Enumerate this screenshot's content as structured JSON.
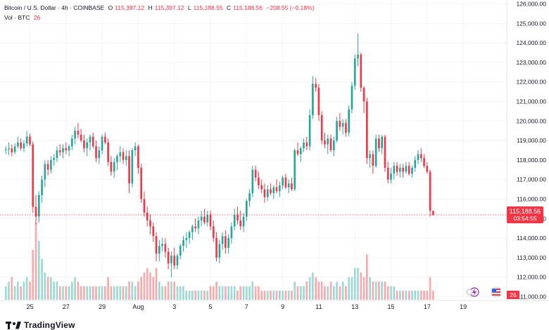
{
  "legend": {
    "symbol": "Bitcoin / U.S. Dollar · 4h · COINBASE",
    "o_label": "O",
    "o_value": "115,397.12",
    "h_label": "H",
    "h_value": "115,397.12",
    "l_label": "L",
    "l_value": "115,188.55",
    "c_label": "C",
    "c_value": "115,188.56",
    "change": "−208.55 (−0.18%)",
    "vol_label": "Vol · BTC",
    "vol_value": "26"
  },
  "brand": {
    "name": "TradingView"
  },
  "price_tag": {
    "price": "115,188.56",
    "countdown": "03:54:55"
  },
  "vol_tag": {
    "value": "26"
  },
  "colors": {
    "up": "#26a69a",
    "down": "#f23645",
    "up_vol": "#9ed8d3",
    "down_vol": "#f7a9ab",
    "grid": "#f0f3fa",
    "text": "#131722"
  },
  "chart_data": {
    "type": "candlestick",
    "symbol": "Bitcoin / U.S. Dollar",
    "interval": "4h",
    "exchange": "COINBASE",
    "ylim": [
      110800,
      126200
    ],
    "y_ticks": [
      111000,
      112000,
      113000,
      114000,
      115000,
      116000,
      117000,
      118000,
      119000,
      120000,
      121000,
      122000,
      123000,
      124000,
      125000,
      126000
    ],
    "y_tick_labels": [
      "111,000.00",
      "112,000.00",
      "113,000.00",
      "114,000.00",
      "115,000.00",
      "116,000.00",
      "117,000.00",
      "118,000.00",
      "119,000.00",
      "120,000.00",
      "121,000.00",
      "122,000.00",
      "123,000.00",
      "124,000.00",
      "125,000.00",
      "126,000.00"
    ],
    "x_labels": [
      {
        "label": "25",
        "index": 8
      },
      {
        "label": "27",
        "index": 20
      },
      {
        "label": "29",
        "index": 32
      },
      {
        "label": "Aug",
        "index": 44
      },
      {
        "label": "3",
        "index": 56
      },
      {
        "label": "5",
        "index": 68
      },
      {
        "label": "7",
        "index": 80
      },
      {
        "label": "9",
        "index": 92
      },
      {
        "label": "11",
        "index": 104
      },
      {
        "label": "13",
        "index": 116
      },
      {
        "label": "15",
        "index": 128
      },
      {
        "label": "17",
        "index": 140
      },
      {
        "label": "19",
        "index": 152
      }
    ],
    "last_price": 115188.56,
    "candles": [
      [
        118500,
        118700,
        118300,
        118550,
        3
      ],
      [
        118550,
        118900,
        118250,
        118600,
        4
      ],
      [
        118600,
        118800,
        118200,
        118400,
        5
      ],
      [
        118400,
        118850,
        118300,
        118700,
        3
      ],
      [
        118700,
        119200,
        118600,
        118900,
        4
      ],
      [
        118900,
        119100,
        118500,
        118600,
        3
      ],
      [
        118600,
        119000,
        118400,
        118850,
        4
      ],
      [
        118850,
        119500,
        118700,
        119200,
        5
      ],
      [
        119200,
        119350,
        118700,
        118800,
        4
      ],
      [
        118800,
        118950,
        115300,
        115600,
        11
      ],
      [
        115600,
        116200,
        114700,
        115100,
        17
      ],
      [
        115100,
        116400,
        114800,
        116200,
        13
      ],
      [
        116200,
        117200,
        115800,
        117000,
        9
      ],
      [
        117000,
        118000,
        116600,
        117800,
        6
      ],
      [
        117800,
        118000,
        117200,
        117500,
        5
      ],
      [
        117500,
        118200,
        117300,
        118000,
        5
      ],
      [
        118000,
        118300,
        117700,
        118100,
        4
      ],
      [
        118100,
        118700,
        117900,
        118500,
        4
      ],
      [
        118500,
        118800,
        118200,
        118400,
        3
      ],
      [
        118400,
        118800,
        118100,
        118600,
        3
      ],
      [
        118600,
        118900,
        118300,
        118500,
        3
      ],
      [
        118500,
        118800,
        118200,
        118700,
        3
      ],
      [
        118700,
        119300,
        118500,
        119100,
        4
      ],
      [
        119100,
        119700,
        118800,
        119500,
        5
      ],
      [
        119500,
        119900,
        119100,
        119300,
        4
      ],
      [
        119300,
        119600,
        118900,
        119000,
        3
      ],
      [
        119000,
        119300,
        118400,
        118600,
        3
      ],
      [
        118600,
        119100,
        118200,
        118900,
        3
      ],
      [
        118900,
        119300,
        118500,
        119200,
        3
      ],
      [
        119200,
        119400,
        118600,
        118700,
        3
      ],
      [
        118700,
        119000,
        117900,
        118100,
        3
      ],
      [
        118100,
        118700,
        117800,
        118500,
        3
      ],
      [
        118500,
        119300,
        118300,
        119200,
        3
      ],
      [
        119200,
        119400,
        118800,
        118900,
        3
      ],
      [
        118900,
        119100,
        117700,
        117900,
        5
      ],
      [
        117900,
        118200,
        117200,
        117400,
        3
      ],
      [
        117400,
        118100,
        117100,
        117900,
        3
      ],
      [
        117900,
        118300,
        117500,
        118200,
        3
      ],
      [
        118200,
        118700,
        117900,
        118400,
        3
      ],
      [
        118400,
        118600,
        117800,
        118000,
        3
      ],
      [
        118000,
        118500,
        117700,
        118200,
        3
      ],
      [
        118200,
        118500,
        116300,
        116800,
        4
      ],
      [
        116800,
        118600,
        116600,
        118500,
        4
      ],
      [
        118500,
        118900,
        118200,
        118700,
        3
      ],
      [
        118700,
        118800,
        117300,
        117600,
        4
      ],
      [
        117600,
        117800,
        115800,
        116000,
        5
      ],
      [
        116000,
        116400,
        115100,
        115300,
        6
      ],
      [
        115300,
        115600,
        114600,
        114900,
        7
      ],
      [
        114900,
        115200,
        114200,
        114600,
        6
      ],
      [
        114600,
        114800,
        113800,
        114100,
        5
      ],
      [
        114100,
        114300,
        112800,
        113200,
        7
      ],
      [
        113200,
        113900,
        112800,
        113600,
        4
      ],
      [
        113600,
        114000,
        113300,
        113700,
        3
      ],
      [
        113700,
        114000,
        113000,
        113300,
        3
      ],
      [
        113300,
        113500,
        112400,
        112700,
        4
      ],
      [
        112700,
        113300,
        112000,
        113100,
        4
      ],
      [
        113100,
        113500,
        112400,
        112600,
        4
      ],
      [
        112600,
        113200,
        112400,
        113100,
        3
      ],
      [
        113100,
        113700,
        112900,
        113600,
        3
      ],
      [
        113600,
        114100,
        113300,
        113900,
        3
      ],
      [
        113900,
        114300,
        113500,
        114000,
        2
      ],
      [
        114000,
        114400,
        113700,
        114300,
        2
      ],
      [
        114300,
        114700,
        113900,
        114600,
        2
      ],
      [
        114600,
        115000,
        114300,
        114500,
        2
      ],
      [
        114500,
        115100,
        114200,
        114900,
        2
      ],
      [
        114900,
        115400,
        114600,
        115100,
        2
      ],
      [
        115100,
        115500,
        114700,
        114800,
        2
      ],
      [
        114800,
        115400,
        114600,
        115200,
        2
      ],
      [
        115200,
        115400,
        114400,
        114600,
        3
      ],
      [
        114600,
        114900,
        113800,
        114000,
        3
      ],
      [
        114000,
        114300,
        112800,
        113000,
        4
      ],
      [
        113000,
        113900,
        112700,
        113700,
        3
      ],
      [
        113700,
        114300,
        113400,
        114100,
        3
      ],
      [
        114100,
        114400,
        113200,
        113500,
        3
      ],
      [
        113500,
        114200,
        113200,
        114000,
        3
      ],
      [
        114000,
        114800,
        113700,
        114600,
        3
      ],
      [
        114600,
        115500,
        114400,
        115200,
        3
      ],
      [
        115200,
        115600,
        114700,
        114900,
        2
      ],
      [
        114900,
        115400,
        114400,
        114600,
        3
      ],
      [
        114600,
        115300,
        114300,
        115100,
        3
      ],
      [
        115100,
        116000,
        114900,
        115900,
        3
      ],
      [
        115900,
        116500,
        115600,
        116300,
        3
      ],
      [
        116300,
        117700,
        116100,
        117500,
        4
      ],
      [
        117500,
        117700,
        116900,
        117100,
        3
      ],
      [
        117100,
        117400,
        116500,
        116700,
        3
      ],
      [
        116700,
        117000,
        116300,
        116500,
        2
      ],
      [
        116500,
        116800,
        115800,
        116100,
        2
      ],
      [
        116100,
        116700,
        115900,
        116500,
        2
      ],
      [
        116500,
        116800,
        116200,
        116300,
        2
      ],
      [
        116300,
        116700,
        116000,
        116600,
        2
      ],
      [
        116600,
        117000,
        116300,
        116400,
        2
      ],
      [
        116400,
        116900,
        116100,
        116700,
        2
      ],
      [
        116700,
        117200,
        116500,
        117100,
        2
      ],
      [
        117100,
        117300,
        116500,
        116600,
        2
      ],
      [
        116600,
        117000,
        116300,
        116800,
        2
      ],
      [
        116800,
        117100,
        116400,
        116500,
        2
      ],
      [
        116500,
        118600,
        116400,
        118500,
        4
      ],
      [
        118500,
        118900,
        118200,
        118300,
        3
      ],
      [
        118300,
        118700,
        117900,
        118600,
        3
      ],
      [
        118600,
        119100,
        118400,
        118900,
        3
      ],
      [
        118900,
        119200,
        118500,
        118700,
        4
      ],
      [
        118700,
        120600,
        118500,
        120300,
        5
      ],
      [
        120300,
        122300,
        120100,
        121900,
        6
      ],
      [
        121900,
        122200,
        121500,
        121700,
        5
      ],
      [
        121700,
        121900,
        120000,
        120300,
        4
      ],
      [
        120300,
        120500,
        118800,
        119000,
        4
      ],
      [
        119000,
        119400,
        118600,
        118800,
        3
      ],
      [
        118800,
        119300,
        118300,
        119100,
        3
      ],
      [
        119100,
        119300,
        118400,
        118500,
        4
      ],
      [
        118500,
        119200,
        118200,
        119000,
        3
      ],
      [
        119000,
        120200,
        118900,
        120000,
        4
      ],
      [
        120000,
        120400,
        119500,
        119700,
        3
      ],
      [
        119700,
        120100,
        119300,
        119900,
        4
      ],
      [
        119900,
        120100,
        119200,
        119400,
        3
      ],
      [
        119400,
        120800,
        119200,
        120600,
        5
      ],
      [
        120600,
        122000,
        120400,
        121800,
        5
      ],
      [
        121800,
        123400,
        121600,
        123200,
        7
      ],
      [
        123200,
        124500,
        122800,
        123400,
        7
      ],
      [
        123400,
        123500,
        121500,
        121700,
        6
      ],
      [
        121700,
        121800,
        120400,
        121000,
        5
      ],
      [
        121000,
        121200,
        117800,
        118100,
        10
      ],
      [
        118100,
        118500,
        117600,
        118300,
        5
      ],
      [
        118300,
        118500,
        117300,
        117700,
        4
      ],
      [
        117700,
        119300,
        117600,
        119100,
        4
      ],
      [
        119100,
        119300,
        118400,
        118600,
        4
      ],
      [
        118600,
        119300,
        118300,
        119200,
        4
      ],
      [
        119200,
        119300,
        117400,
        117600,
        4
      ],
      [
        117600,
        117900,
        116800,
        117000,
        3
      ],
      [
        117000,
        117600,
        116800,
        117300,
        3
      ],
      [
        117300,
        117900,
        117000,
        117700,
        3
      ],
      [
        117700,
        117900,
        117200,
        117400,
        2
      ],
      [
        117400,
        117800,
        117100,
        117600,
        2
      ],
      [
        117600,
        117800,
        117100,
        117400,
        2
      ],
      [
        117400,
        117900,
        117300,
        117700,
        2
      ],
      [
        117700,
        117900,
        117200,
        117300,
        2
      ],
      [
        117300,
        117700,
        117100,
        117600,
        2
      ],
      [
        117600,
        118200,
        117400,
        118000,
        2
      ],
      [
        118000,
        118500,
        117800,
        118300,
        2
      ],
      [
        118300,
        118600,
        117900,
        118100,
        2
      ],
      [
        118100,
        118300,
        117600,
        117700,
        2
      ],
      [
        117700,
        117900,
        117300,
        117400,
        2
      ],
      [
        117400,
        117500,
        115100,
        115400,
        5
      ],
      [
        115400,
        115400,
        115150,
        115190,
        2
      ]
    ]
  }
}
